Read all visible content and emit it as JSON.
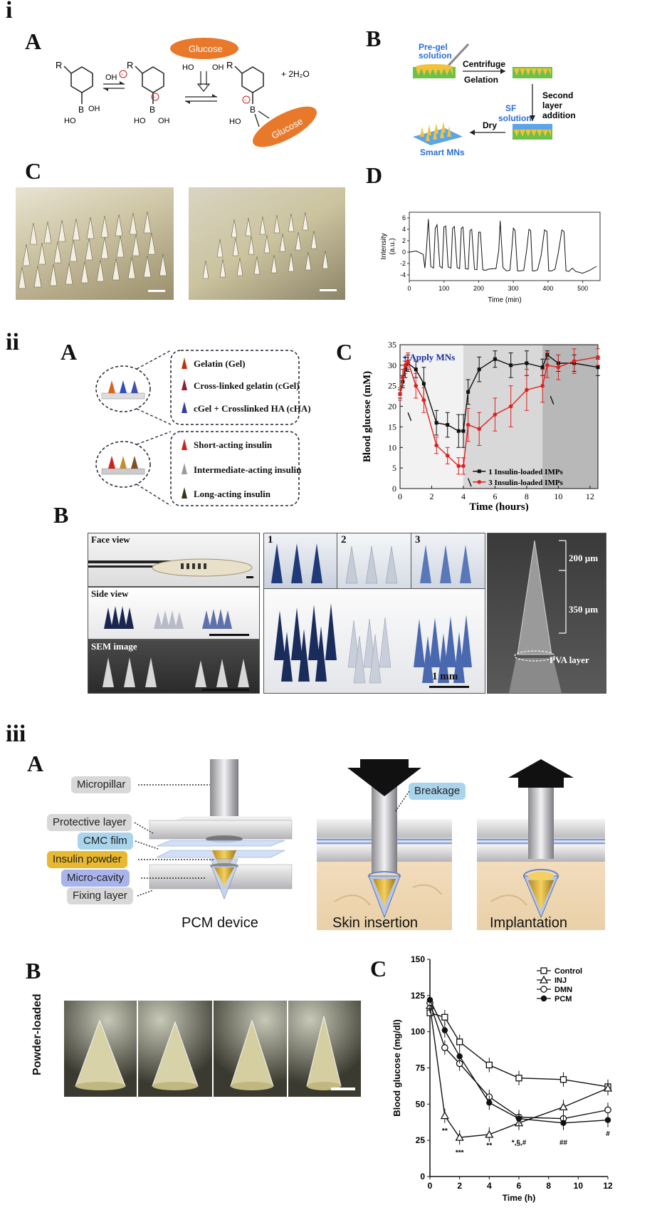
{
  "sections": {
    "i": "i",
    "ii": "ii",
    "iii": "iii"
  },
  "i": {
    "A": {
      "label": "A",
      "glucose1": "Glucose",
      "glucose2": "Glucose",
      "oh": "OH",
      "r1": "R",
      "r2": "R",
      "r3": "R",
      "water": "+ 2H₂O",
      "ho1": "HO",
      "oh1": "OH",
      "ho2": "HO",
      "oh2": "OH",
      "ho3": "HO",
      "ho4": "HO",
      "oh3": "OH",
      "b1": "B",
      "b2": "B",
      "b3": "B"
    },
    "B": {
      "label": "B",
      "pregel": "Pre-gel\nsolution",
      "centrifuge": "Centrifuge",
      "gelation": "Gelation",
      "second": "Second",
      "layer": "layer",
      "addition": "addition",
      "sf": "SF",
      "sfsol": "solution",
      "dry": "Dry",
      "smart": "Smart MNs"
    },
    "C": {
      "label": "C"
    },
    "D": {
      "label": "D",
      "ylabel": "Intensity",
      "yunit": "(a.u.)",
      "xlabel": "Time (min)"
    }
  },
  "ii": {
    "A": {
      "label": "A",
      "items_top": [
        "Gelatin (Gel)",
        "Cross-linked gelatin (cGel)",
        "cGel + Crosslinked HA (cHA)"
      ],
      "items_bottom": [
        "Short-acting insulin",
        "Intermediate-acting insulin",
        "Long-acting insulin"
      ]
    },
    "B": {
      "label": "B",
      "face": "Face view",
      "side": "Side view",
      "sem": "SEM image",
      "n1": "1",
      "n2": "2",
      "n3": "3",
      "scale": "1 mm",
      "dim1": "200 µm",
      "dim2": "350 µm",
      "pva": "PVA layer"
    },
    "C": {
      "label": "C",
      "apply": "Apply MNs"
    }
  },
  "iii": {
    "A": {
      "label": "A",
      "callouts": [
        "Micropillar",
        "Protective layer",
        "CMC film",
        "Insulin powder",
        "Micro-cavity",
        "Fixing layer"
      ],
      "breakage": "Breakage",
      "captions": [
        "PCM device",
        "Skin insertion",
        "Implantation"
      ]
    },
    "B": {
      "label": "B",
      "side": "Powder-loaded"
    },
    "C": {
      "label": "C"
    }
  },
  "chart_data": [
    {
      "type": "line",
      "title": "",
      "xlabel": "Time (min)",
      "ylabel": "Intensity (a.u.)",
      "xlim": [
        0,
        550
      ],
      "ylim": [
        -5,
        7
      ],
      "xticks": [
        0,
        100,
        200,
        300,
        400,
        500
      ],
      "yticks": [
        -4,
        -2,
        0,
        2,
        4,
        6
      ],
      "series": [
        {
          "x": [
            0,
            20,
            40,
            45,
            50,
            55,
            62,
            70,
            75,
            80,
            88,
            95,
            100,
            105,
            112,
            120,
            125,
            130,
            138,
            145,
            150,
            155,
            162,
            170,
            175,
            180,
            188,
            195,
            200,
            205,
            212,
            220,
            228,
            240,
            250,
            258,
            262,
            270,
            280,
            290,
            296,
            300,
            305,
            312,
            320,
            330,
            338,
            345,
            350,
            355,
            362,
            370,
            380,
            390,
            397,
            402,
            410,
            420,
            430,
            440,
            446,
            452,
            460,
            470,
            480,
            500,
            520,
            540
          ],
          "y": [
            0,
            0.2,
            -0.4,
            -2.8,
            1,
            5.8,
            -2.5,
            -2.8,
            4.2,
            4.8,
            -2.5,
            -2.8,
            4.4,
            4.6,
            -2.6,
            -2.8,
            4.2,
            4.5,
            -2.7,
            -2.9,
            4.2,
            4.4,
            -2.9,
            -3,
            3.8,
            4,
            -3,
            -3.1,
            3.5,
            3.5,
            -3.1,
            -3.2,
            -3,
            -2.9,
            -2.9,
            0.3,
            5.5,
            -2.7,
            -3.3,
            -3.2,
            0.8,
            4.2,
            3.8,
            -3.3,
            -3.3,
            -3.2,
            0.2,
            4,
            3.8,
            -3.3,
            -3.3,
            -3.1,
            -0.6,
            3.9,
            3.6,
            -3.3,
            -3.3,
            -3,
            0,
            3.9,
            3.6,
            -3.3,
            -3.4,
            -2.8,
            -3.4,
            -3.7,
            -3.2,
            -2.5
          ]
        }
      ]
    },
    {
      "type": "line",
      "title": "",
      "xlabel": "Time (hours)",
      "ylabel": "Blood glucose (mM)",
      "xlim": [
        0,
        12.5
      ],
      "ylim": [
        0,
        35
      ],
      "xticks": [
        0,
        2,
        4,
        6,
        8,
        10,
        12
      ],
      "yticks": [
        0,
        5,
        10,
        15,
        20,
        25,
        30,
        35
      ],
      "shaded_regions": [
        [
          0,
          4
        ],
        [
          4,
          9
        ],
        [
          9,
          12.5
        ]
      ],
      "series": [
        {
          "name": "1 Insulin-loaded IMPs",
          "color": "#111111",
          "marker": "square",
          "x": [
            0,
            0.17,
            0.33,
            0.5,
            1,
            1.5,
            2.3,
            3,
            3.7,
            4,
            4.3,
            5,
            6,
            7,
            8,
            9,
            9.3,
            10,
            11,
            12.5
          ],
          "y": [
            23,
            26,
            29,
            30.5,
            29,
            25.5,
            16,
            15.5,
            14,
            14,
            23.5,
            29,
            31.5,
            30,
            30.5,
            29.5,
            32.5,
            30.5,
            30.5,
            29.5
          ],
          "err": [
            1,
            1.5,
            2,
            2,
            2,
            4,
            3,
            3,
            4,
            4,
            3,
            3,
            2,
            3,
            3,
            2,
            1,
            2,
            2,
            2
          ]
        },
        {
          "name": "3 Insulin-loaded IMPs",
          "color": "#e02020",
          "marker": "circle",
          "x": [
            0,
            0.17,
            0.33,
            0.5,
            1,
            1.5,
            2.3,
            3,
            3.7,
            4,
            4.3,
            5,
            6,
            7,
            8,
            9,
            9.3,
            10,
            11,
            12.5
          ],
          "y": [
            23,
            27,
            30,
            31,
            25,
            21.5,
            10.5,
            8,
            5.5,
            5.5,
            15.5,
            14.5,
            18,
            20,
            24,
            25,
            30,
            29.5,
            31,
            32
          ],
          "err": [
            1.5,
            2,
            2,
            2,
            3,
            3,
            2,
            2,
            2,
            2,
            4,
            4,
            4,
            5,
            5,
            4,
            3,
            3,
            3,
            2
          ]
        }
      ]
    },
    {
      "type": "line",
      "title": "",
      "xlabel": "Time (h)",
      "ylabel": "Blood glucose (mg/dl)",
      "xlim": [
        0,
        12
      ],
      "ylim": [
        0,
        150
      ],
      "xticks": [
        0,
        2,
        4,
        6,
        8,
        10,
        12
      ],
      "yticks": [
        0,
        25,
        50,
        75,
        100,
        125,
        150
      ],
      "x": [
        0,
        1,
        2,
        4,
        6,
        9,
        12
      ],
      "series": [
        {
          "name": "Control",
          "marker": "open-square",
          "y": [
            113,
            110,
            93,
            77,
            68,
            67,
            62
          ]
        },
        {
          "name": "INJ",
          "marker": "open-triangle",
          "y": [
            118,
            42,
            27,
            29,
            37,
            48,
            61
          ]
        },
        {
          "name": "DMN",
          "marker": "open-circle",
          "y": [
            120,
            89,
            78,
            55,
            41,
            40,
            46
          ]
        },
        {
          "name": "PCM",
          "marker": "filled-circle",
          "y": [
            122,
            101,
            83,
            51,
            40,
            37,
            39
          ]
        }
      ],
      "annotations": [
        "**",
        "***",
        "**",
        "*,§,#",
        "##",
        "#"
      ]
    }
  ]
}
